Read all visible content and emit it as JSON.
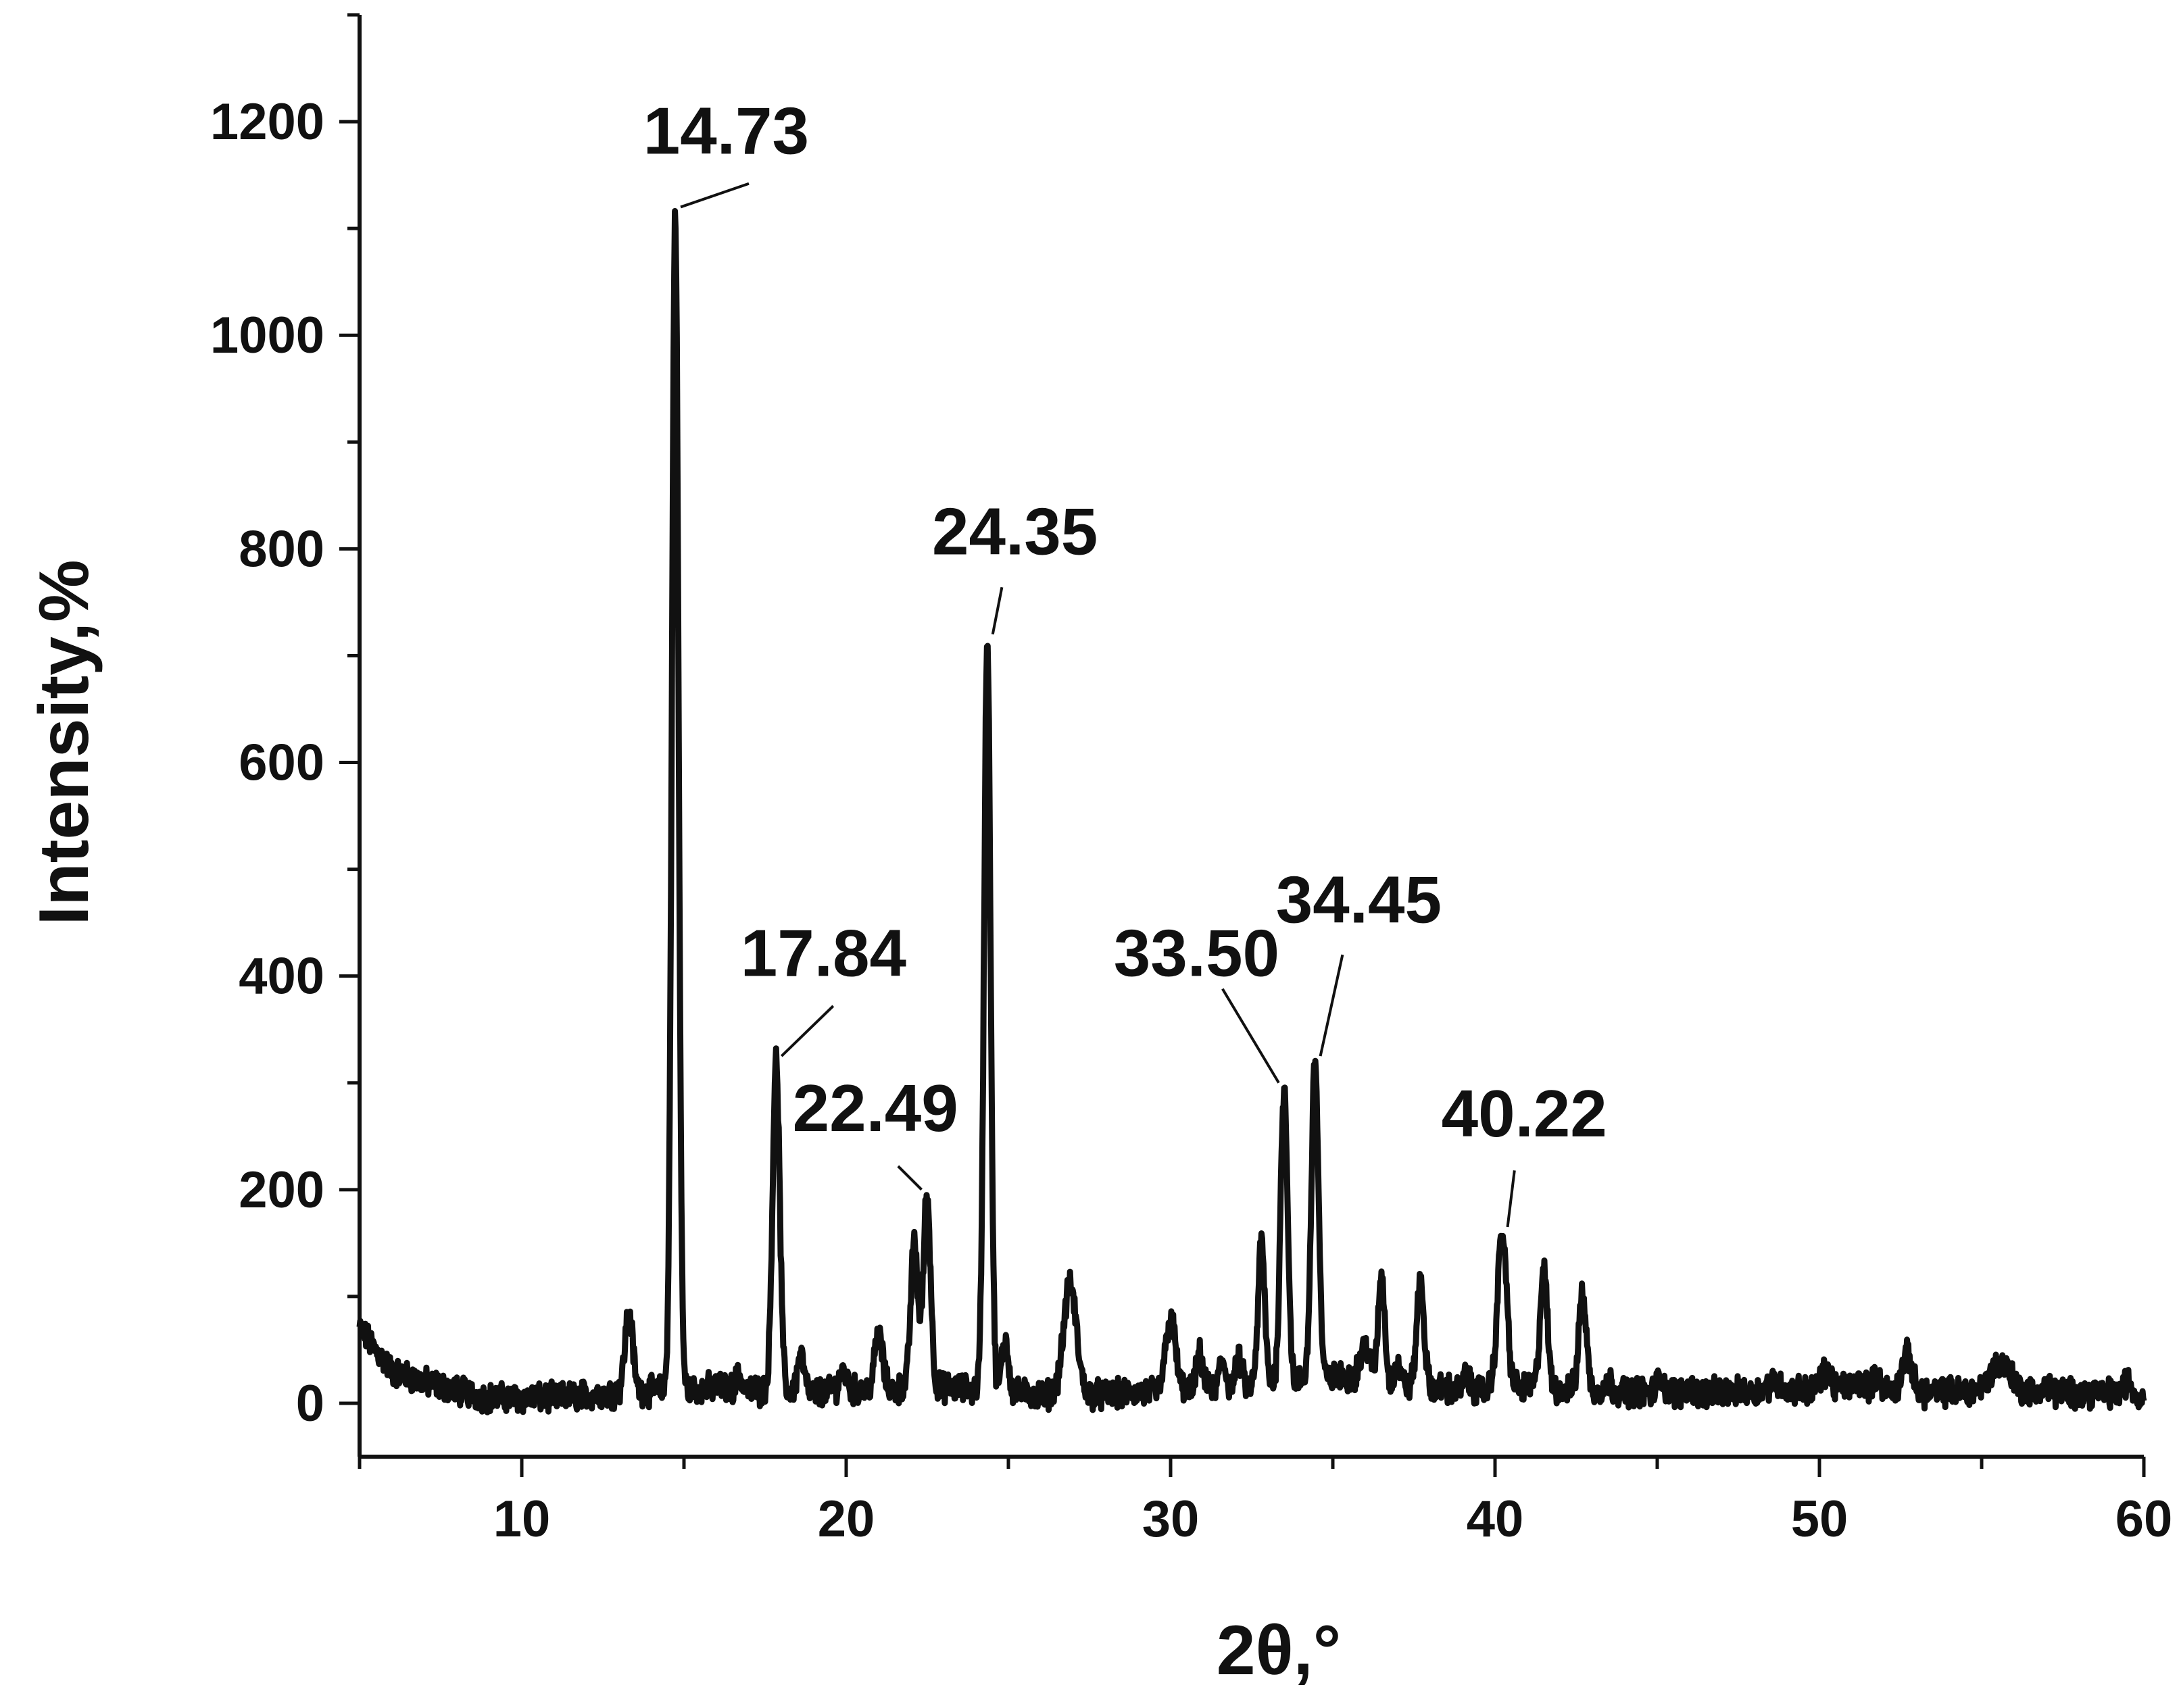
{
  "chart_data": {
    "type": "line",
    "xlabel": "2θ,°",
    "ylabel": "Intensity,%",
    "xlim": [
      5,
      60
    ],
    "ylim": [
      -50,
      1300
    ],
    "x_ticks": [
      10,
      20,
      30,
      40,
      50,
      60
    ],
    "y_ticks": [
      0,
      200,
      400,
      600,
      800,
      1000,
      1200
    ],
    "grid": false,
    "legend": "none",
    "line_color": "#111111",
    "baseline": {
      "x": [
        5,
        5.5,
        6,
        7,
        8,
        9,
        10,
        11,
        12,
        13,
        16,
        17,
        19,
        20,
        23,
        25,
        26,
        28,
        29,
        31,
        32,
        33,
        35.5,
        36,
        38,
        39,
        41,
        43.5,
        45,
        47,
        49,
        51,
        53,
        55,
        57,
        59,
        60
      ],
      "y": [
        70,
        50,
        30,
        20,
        12,
        5,
        5,
        5,
        8,
        10,
        15,
        12,
        10,
        12,
        15,
        10,
        8,
        8,
        10,
        12,
        15,
        18,
        25,
        20,
        15,
        12,
        15,
        12,
        10,
        10,
        12,
        15,
        10,
        12,
        10,
        10,
        5
      ]
    },
    "peaks": [
      {
        "x": 13.3,
        "y": 85,
        "w": 0.12
      },
      {
        "x": 14.73,
        "y": 1115,
        "w": 0.1
      },
      {
        "x": 16.7,
        "y": 25,
        "w": 0.1
      },
      {
        "x": 17.84,
        "y": 320,
        "w": 0.11
      },
      {
        "x": 18.6,
        "y": 45,
        "w": 0.1
      },
      {
        "x": 19.9,
        "y": 30,
        "w": 0.12
      },
      {
        "x": 21.0,
        "y": 65,
        "w": 0.12
      },
      {
        "x": 22.1,
        "y": 150,
        "w": 0.11
      },
      {
        "x": 22.49,
        "y": 195,
        "w": 0.11
      },
      {
        "x": 24.35,
        "y": 715,
        "w": 0.1
      },
      {
        "x": 24.9,
        "y": 60,
        "w": 0.1
      },
      {
        "x": 26.9,
        "y": 110,
        "w": 0.2
      },
      {
        "x": 30.0,
        "y": 80,
        "w": 0.15
      },
      {
        "x": 30.9,
        "y": 45,
        "w": 0.1
      },
      {
        "x": 31.6,
        "y": 40,
        "w": 0.1
      },
      {
        "x": 32.1,
        "y": 40,
        "w": 0.1
      },
      {
        "x": 32.8,
        "y": 150,
        "w": 0.1
      },
      {
        "x": 33.5,
        "y": 295,
        "w": 0.11
      },
      {
        "x": 34.45,
        "y": 320,
        "w": 0.11
      },
      {
        "x": 36.0,
        "y": 55,
        "w": 0.15
      },
      {
        "x": 36.5,
        "y": 120,
        "w": 0.1
      },
      {
        "x": 37.0,
        "y": 35,
        "w": 0.1
      },
      {
        "x": 37.7,
        "y": 115,
        "w": 0.11
      },
      {
        "x": 39.1,
        "y": 25,
        "w": 0.1
      },
      {
        "x": 40.22,
        "y": 160,
        "w": 0.14
      },
      {
        "x": 41.5,
        "y": 125,
        "w": 0.11
      },
      {
        "x": 42.7,
        "y": 105,
        "w": 0.11
      },
      {
        "x": 43.5,
        "y": 20,
        "w": 0.1
      },
      {
        "x": 45.1,
        "y": 25,
        "w": 0.1
      },
      {
        "x": 46.0,
        "y": 15,
        "w": 0.1
      },
      {
        "x": 48.6,
        "y": 20,
        "w": 0.2
      },
      {
        "x": 50.2,
        "y": 30,
        "w": 0.15
      },
      {
        "x": 51.3,
        "y": 20,
        "w": 0.2
      },
      {
        "x": 51.8,
        "y": 25,
        "w": 0.1
      },
      {
        "x": 52.7,
        "y": 45,
        "w": 0.15
      },
      {
        "x": 55.6,
        "y": 38,
        "w": 0.3
      },
      {
        "x": 57.0,
        "y": 15,
        "w": 0.1
      },
      {
        "x": 59.5,
        "y": 20,
        "w": 0.12
      }
    ],
    "annotations": [
      {
        "text": "14.73",
        "x": 14.73,
        "y": 1115,
        "label_x": 16.3,
        "label_y": 1170,
        "line_to": [
          17.0,
          1142
        ]
      },
      {
        "text": "17.84",
        "x": 17.84,
        "y": 320,
        "label_x": 19.3,
        "label_y": 400,
        "line_to": [
          19.6,
          372
        ]
      },
      {
        "text": "22.49",
        "x": 22.49,
        "y": 195,
        "label_x": 20.9,
        "label_y": 255,
        "line_to": [
          21.6,
          222
        ]
      },
      {
        "text": "24.35",
        "x": 24.35,
        "y": 715,
        "label_x": 25.2,
        "label_y": 795,
        "line_to": [
          24.8,
          764
        ]
      },
      {
        "text": "33.50",
        "x": 33.5,
        "y": 295,
        "label_x": 30.8,
        "label_y": 400,
        "line_to": [
          31.6,
          388
        ]
      },
      {
        "text": "34.45",
        "x": 34.45,
        "y": 320,
        "label_x": 35.8,
        "label_y": 450,
        "line_to": [
          35.3,
          420
        ]
      },
      {
        "text": "40.22",
        "x": 40.22,
        "y": 160,
        "label_x": 40.9,
        "label_y": 250,
        "line_to": [
          40.6,
          218
        ]
      }
    ]
  }
}
